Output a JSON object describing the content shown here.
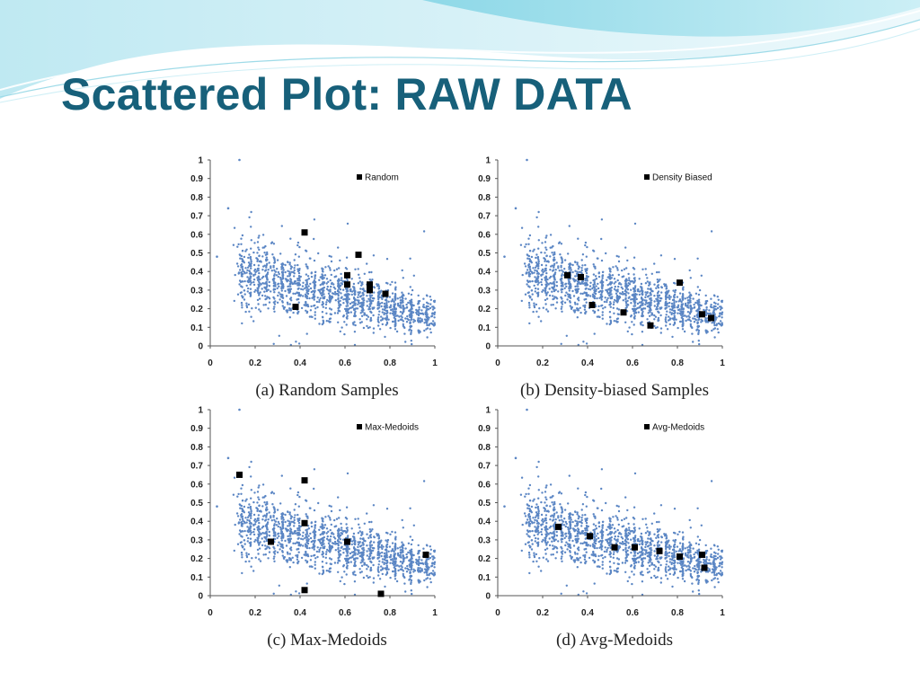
{
  "slide": {
    "title": "Scattered Plot: RAW DATA"
  },
  "chart_data": [
    {
      "type": "scatter",
      "caption": "(a) Random Samples",
      "xlim": [
        0,
        1
      ],
      "ylim": [
        0,
        1
      ],
      "x_ticks": [
        "0",
        "0.2",
        "0.4",
        "0.6",
        "0.8",
        "1"
      ],
      "y_ticks": [
        "0",
        "0.1",
        "0.2",
        "0.3",
        "0.4",
        "0.5",
        "0.6",
        "0.7",
        "0.8",
        "0.9",
        "1"
      ],
      "legend_position": "top-right",
      "series": [
        {
          "name": "Random",
          "color": "#000000",
          "marker": "square",
          "points": [
            [
              0.42,
              0.61
            ],
            [
              0.66,
              0.49
            ],
            [
              0.61,
              0.38
            ],
            [
              0.61,
              0.33
            ],
            [
              0.71,
              0.33
            ],
            [
              0.71,
              0.3
            ],
            [
              0.78,
              0.28
            ],
            [
              0.38,
              0.21
            ]
          ]
        }
      ]
    },
    {
      "type": "scatter",
      "caption": "(b) Density-biased Samples",
      "xlim": [
        0,
        1
      ],
      "ylim": [
        0,
        1
      ],
      "x_ticks": [
        "0",
        "0.2",
        "0.4",
        "0.6",
        "0.8",
        "1"
      ],
      "y_ticks": [
        "0",
        "0.1",
        "0.2",
        "0.3",
        "0.4",
        "0.5",
        "0.6",
        "0.7",
        "0.8",
        "0.9",
        "1"
      ],
      "legend_position": "top-right",
      "series": [
        {
          "name": "Density Biased",
          "color": "#000000",
          "marker": "square",
          "points": [
            [
              0.31,
              0.38
            ],
            [
              0.37,
              0.37
            ],
            [
              0.42,
              0.22
            ],
            [
              0.56,
              0.18
            ],
            [
              0.68,
              0.11
            ],
            [
              0.81,
              0.34
            ],
            [
              0.91,
              0.17
            ],
            [
              0.95,
              0.15
            ]
          ]
        }
      ]
    },
    {
      "type": "scatter",
      "caption": "(c) Max-Medoids",
      "xlim": [
        0,
        1
      ],
      "ylim": [
        0,
        1
      ],
      "x_ticks": [
        "0",
        "0.2",
        "0.4",
        "0.6",
        "0.8",
        "1"
      ],
      "y_ticks": [
        "0",
        "0.1",
        "0.2",
        "0.3",
        "0.4",
        "0.5",
        "0.6",
        "0.7",
        "0.8",
        "0.9",
        "1"
      ],
      "legend_position": "top-right",
      "series": [
        {
          "name": "Max-Medoids",
          "color": "#000000",
          "marker": "square",
          "points": [
            [
              0.13,
              0.65
            ],
            [
              0.42,
              0.62
            ],
            [
              0.42,
              0.39
            ],
            [
              0.27,
              0.29
            ],
            [
              0.61,
              0.29
            ],
            [
              0.96,
              0.22
            ],
            [
              0.42,
              0.03
            ],
            [
              0.76,
              0.01
            ]
          ]
        }
      ]
    },
    {
      "type": "scatter",
      "caption": "(d) Avg-Medoids",
      "xlim": [
        0,
        1
      ],
      "ylim": [
        0,
        1
      ],
      "x_ticks": [
        "0",
        "0.2",
        "0.4",
        "0.6",
        "0.8",
        "1"
      ],
      "y_ticks": [
        "0",
        "0.1",
        "0.2",
        "0.3",
        "0.4",
        "0.5",
        "0.6",
        "0.7",
        "0.8",
        "0.9",
        "1"
      ],
      "legend_position": "top-right",
      "series": [
        {
          "name": "Avg-Medoids",
          "color": "#000000",
          "marker": "square",
          "points": [
            [
              0.27,
              0.37
            ],
            [
              0.41,
              0.32
            ],
            [
              0.52,
              0.26
            ],
            [
              0.61,
              0.26
            ],
            [
              0.72,
              0.24
            ],
            [
              0.81,
              0.21
            ],
            [
              0.91,
              0.22
            ],
            [
              0.92,
              0.15
            ]
          ]
        }
      ]
    }
  ],
  "raw_data_style": {
    "color": "#5b86c4",
    "description_trend": "downward"
  }
}
